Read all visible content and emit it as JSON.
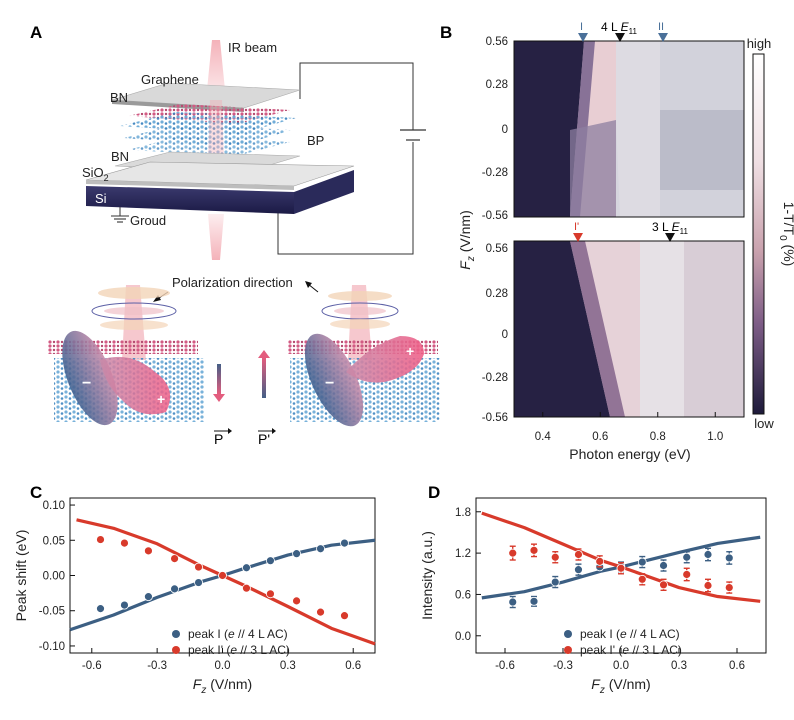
{
  "panels": {
    "A": {
      "letter": "A",
      "labels": {
        "ir_beam": "IR beam",
        "graphene": "Graphene",
        "bn_top": "BN",
        "bp": "BP",
        "sio2": "SiO",
        "sio2_sub": "2",
        "bn_mid": "BN",
        "si": "Si",
        "ground": "Groud",
        "polarization": "Polarization direction",
        "p": "P",
        "p_prime": "P'",
        "minus": "−",
        "plus": "+"
      }
    },
    "B": {
      "letter": "B",
      "colorbar": {
        "high": "high",
        "low": "low",
        "label": "1-T/T",
        "label_sub": "0",
        "label_unit": " (%)"
      },
      "top_markers": {
        "peak1": "I",
        "mid_pre": "4 L ",
        "mid_e": "E",
        "mid_sub": "11",
        "peak2": "II"
      },
      "bottom_markers": {
        "peak1": "I'",
        "mid_pre": "3 L ",
        "mid_e": "E",
        "mid_sub": "11"
      },
      "y_ticks": [
        "0.56",
        "0.28",
        "0",
        "-0.28",
        "-0.56"
      ],
      "x_ticks": [
        "0.4",
        "0.6",
        "0.8",
        "1.0"
      ],
      "x_tick_values": [
        0.4,
        0.6,
        0.8,
        1.0
      ],
      "x_range": [
        0.3,
        1.1
      ],
      "y_label": "F",
      "y_label_sub": "z",
      "y_label_unit": " (V/nm)",
      "x_label": "Photon energy (eV)",
      "colors": {
        "dark": "#262143",
        "mid": "#7d5c86",
        "pink": "#e8ced3",
        "light": "#e6e7ec"
      }
    },
    "C": {
      "letter": "C"
    },
    "D": {
      "letter": "D"
    }
  },
  "chart_data": [
    {
      "panel": "C",
      "type": "scatter",
      "xlabel": "F",
      "xlabel_sub": "z",
      "xlabel_unit": " (V/nm)",
      "ylabel": "Peak shift (eV)",
      "xlim": [
        -0.7,
        0.7
      ],
      "ylim": [
        -0.11,
        0.11
      ],
      "x_ticks": [
        -0.6,
        -0.3,
        0.0,
        0.3,
        0.6
      ],
      "x_tick_labels": [
        "-0.6",
        "-0.3",
        "0.0",
        "0.3",
        "0.6"
      ],
      "y_ticks": [
        -0.1,
        -0.05,
        0.0,
        0.05,
        0.1
      ],
      "y_tick_labels": [
        "-0.10",
        "-0.05",
        "0.00",
        "0.05",
        "0.10"
      ],
      "series": [
        {
          "name": "peak I",
          "legend_pre": "peak I (",
          "legend_post": " // 4 L AC)",
          "color": "#3c5f83",
          "x": [
            -0.56,
            -0.45,
            -0.34,
            -0.22,
            -0.11,
            0.0,
            0.11,
            0.22,
            0.34,
            0.45,
            0.56
          ],
          "y": [
            -0.047,
            -0.042,
            -0.03,
            -0.019,
            -0.01,
            0.0,
            0.011,
            0.021,
            0.031,
            0.038,
            0.046
          ],
          "fit": [
            [
              -0.7,
              -0.077
            ],
            [
              -0.5,
              -0.056
            ],
            [
              -0.3,
              -0.031
            ],
            [
              -0.1,
              -0.009
            ],
            [
              0.0,
              0.0
            ],
            [
              0.1,
              0.01
            ],
            [
              0.3,
              0.029
            ],
            [
              0.5,
              0.043
            ],
            [
              0.7,
              0.05
            ]
          ]
        },
        {
          "name": "peak I'",
          "legend_pre": "peak I' (",
          "legend_post": " // 3 L AC)",
          "color": "#d83a2b",
          "x": [
            -0.56,
            -0.45,
            -0.34,
            -0.22,
            -0.11,
            0.0,
            0.11,
            0.22,
            0.34,
            0.45,
            0.56
          ],
          "y": [
            0.051,
            0.046,
            0.035,
            0.024,
            0.012,
            0.0,
            -0.018,
            -0.026,
            -0.036,
            -0.052,
            -0.057
          ],
          "fit": [
            [
              -0.67,
              0.079
            ],
            [
              -0.5,
              0.067
            ],
            [
              -0.3,
              0.045
            ],
            [
              -0.1,
              0.014
            ],
            [
              0.0,
              0.0
            ],
            [
              0.1,
              -0.014
            ],
            [
              0.3,
              -0.044
            ],
            [
              0.5,
              -0.075
            ],
            [
              0.7,
              -0.097
            ]
          ]
        }
      ]
    },
    {
      "panel": "D",
      "type": "scatter",
      "xlabel": "F",
      "xlabel_sub": "z",
      "xlabel_unit": " (V/nm)",
      "ylabel": "Intensity (a.u.)",
      "xlim": [
        -0.75,
        0.75
      ],
      "ylim": [
        -0.25,
        2.0
      ],
      "x_ticks": [
        -0.6,
        -0.3,
        0.0,
        0.3,
        0.6
      ],
      "x_tick_labels": [
        "-0.6",
        "-0.3",
        "0.0",
        "0.3",
        "0.6"
      ],
      "y_ticks": [
        0.0,
        0.6,
        1.2,
        1.8
      ],
      "y_tick_labels": [
        "0.0",
        "0.6",
        "1.2",
        "1.8"
      ],
      "series": [
        {
          "name": "peak I",
          "legend_pre": "peak I (",
          "legend_post": " // 4 L AC)",
          "color": "#3c5f83",
          "x": [
            -0.56,
            -0.45,
            -0.34,
            -0.22,
            -0.11,
            0.0,
            0.11,
            0.22,
            0.34,
            0.45,
            0.56
          ],
          "y": [
            0.49,
            0.5,
            0.78,
            0.96,
            1.0,
            1.0,
            1.07,
            1.02,
            1.14,
            1.18,
            1.13
          ],
          "err": [
            0.08,
            0.07,
            0.08,
            0.08,
            0.07,
            0.07,
            0.08,
            0.08,
            0.08,
            0.09,
            0.09
          ],
          "fit": [
            [
              -0.72,
              0.55
            ],
            [
              -0.5,
              0.64
            ],
            [
              -0.3,
              0.78
            ],
            [
              -0.1,
              0.94
            ],
            [
              0.0,
              1.0
            ],
            [
              0.1,
              1.07
            ],
            [
              0.3,
              1.21
            ],
            [
              0.5,
              1.34
            ],
            [
              0.72,
              1.43
            ]
          ]
        },
        {
          "name": "peak I'",
          "legend_pre": "peak I' (",
          "legend_post": " // 3 L AC)",
          "color": "#d83a2b",
          "x": [
            -0.56,
            -0.45,
            -0.34,
            -0.22,
            -0.11,
            0.0,
            0.11,
            0.22,
            0.34,
            0.45,
            0.56
          ],
          "y": [
            1.2,
            1.24,
            1.14,
            1.18,
            1.08,
            0.98,
            0.82,
            0.74,
            0.89,
            0.73,
            0.7
          ],
          "err": [
            0.1,
            0.09,
            0.08,
            0.08,
            0.08,
            0.08,
            0.08,
            0.08,
            0.09,
            0.09,
            0.08
          ],
          "fit": [
            [
              -0.72,
              1.78
            ],
            [
              -0.5,
              1.57
            ],
            [
              -0.3,
              1.33
            ],
            [
              -0.1,
              1.09
            ],
            [
              0.0,
              1.0
            ],
            [
              0.1,
              0.9
            ],
            [
              0.3,
              0.7
            ],
            [
              0.5,
              0.57
            ],
            [
              0.72,
              0.5
            ]
          ]
        }
      ]
    }
  ]
}
